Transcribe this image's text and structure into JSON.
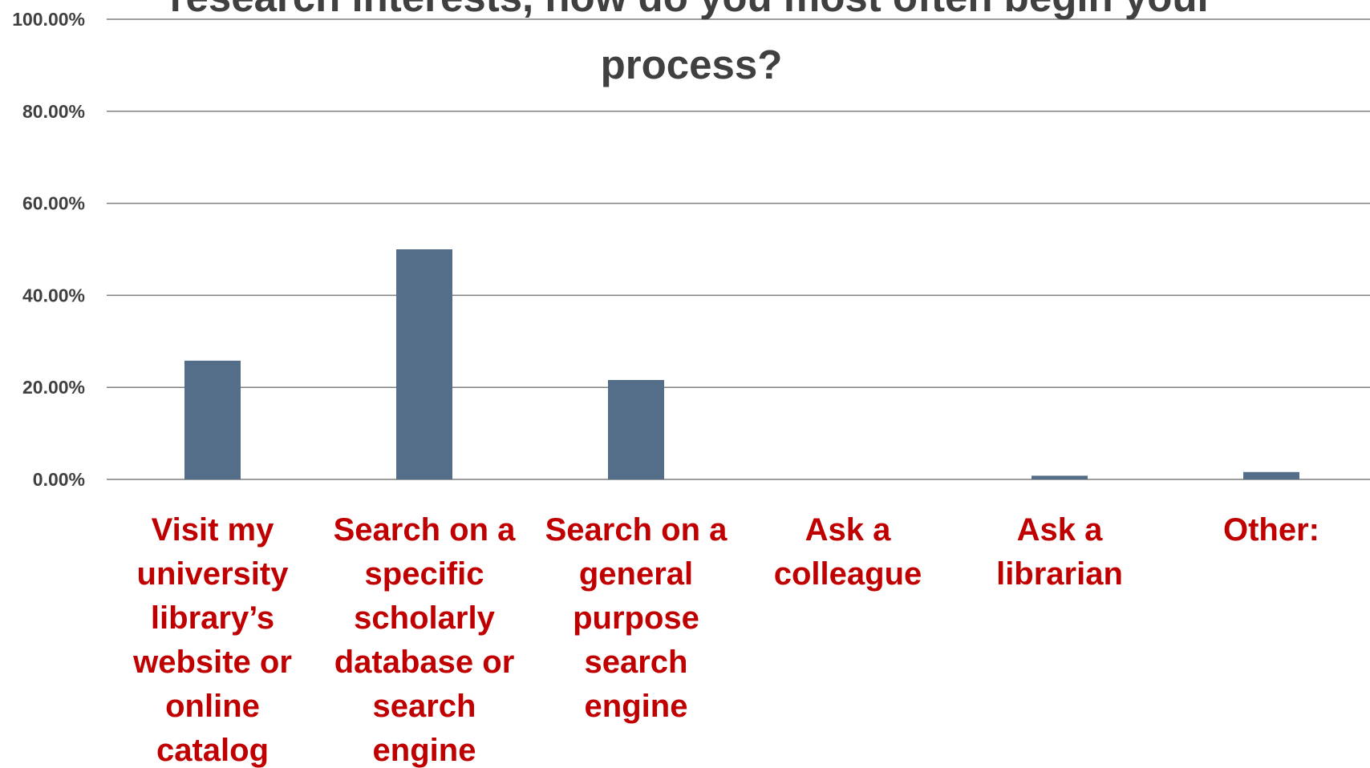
{
  "chart_data": {
    "type": "bar",
    "title_lines": [
      "research interests, how do you most often begin your",
      "process?"
    ],
    "categories": [
      "Visit my university library’s website or online catalog",
      "Search on a specific scholarly database or search engine",
      "Search on a general purpose search engine",
      "Ask a colleague",
      "Ask a librarian",
      "Other:"
    ],
    "category_label_lines": [
      [
        "Visit my",
        "university",
        "library’s",
        "website or",
        "online",
        "catalog"
      ],
      [
        "Search on a",
        "specific",
        "scholarly",
        "database or",
        "search",
        "engine"
      ],
      [
        "Search on a",
        "general",
        "purpose",
        "search",
        "engine"
      ],
      [
        "Ask a",
        "colleague"
      ],
      [
        "Ask a",
        "librarian"
      ],
      [
        "Other:"
      ]
    ],
    "values": [
      25.8,
      50.0,
      21.6,
      0.0,
      0.8,
      1.6
    ],
    "y_ticks": [
      "0.00%",
      "20.00%",
      "40.00%",
      "60.00%",
      "80.00%",
      "100.00%"
    ],
    "ylim": [
      0,
      100
    ],
    "grid": true,
    "legend": "none",
    "colors": {
      "bar": "#546e8a",
      "gridline": "#7f7f7f",
      "category_label": "#c00000",
      "tick_label": "#404040",
      "title": "#404040"
    }
  }
}
